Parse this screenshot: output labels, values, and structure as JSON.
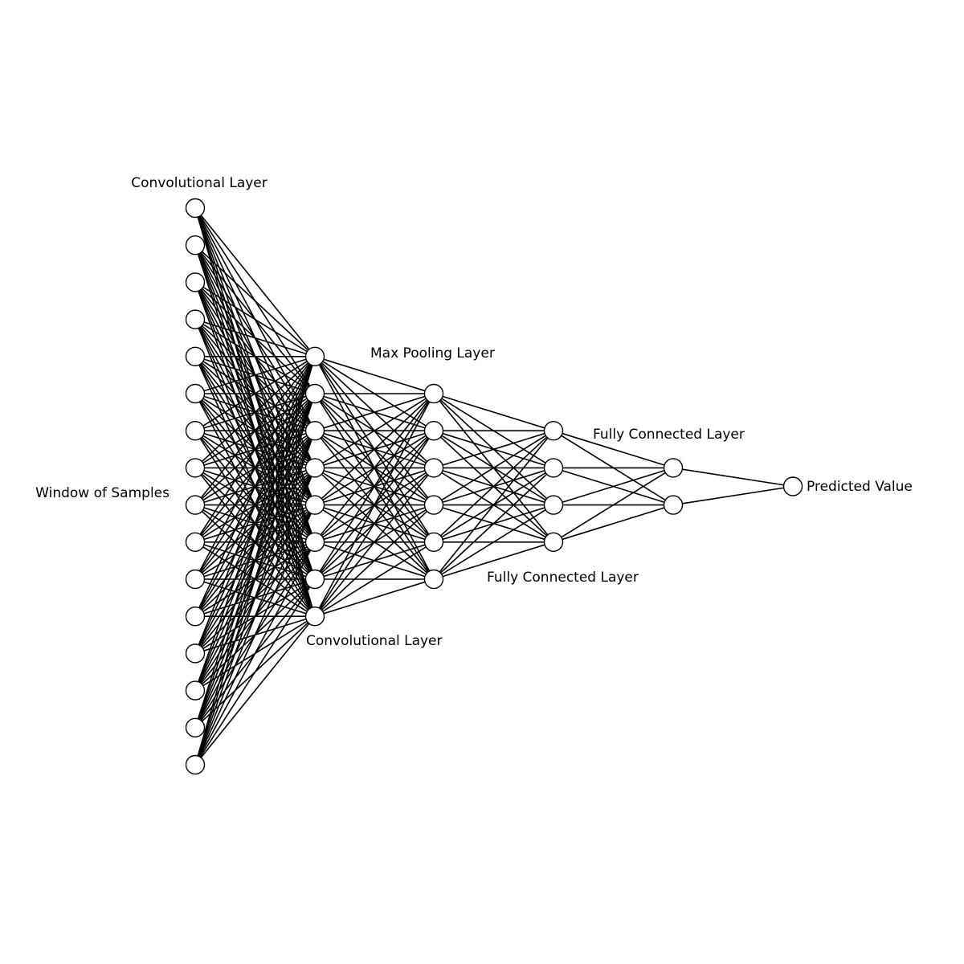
{
  "labels": {
    "input_layer": "Convolutional Layer",
    "input_side": "Window of Samples",
    "conv_layer": "Convolutional Layer",
    "pool_layer": "Max Pooling Layer",
    "fc_layer_top": "Fully Connected Layer",
    "fc_layer_bottom": "Fully Connected Layer",
    "output": "Predicted Value"
  },
  "network": {
    "layer_sizes": [
      16,
      8,
      6,
      4,
      2,
      1
    ],
    "connectivity": "fully-connected",
    "node_fill": "#ffffff",
    "edge_color": "#000000"
  }
}
